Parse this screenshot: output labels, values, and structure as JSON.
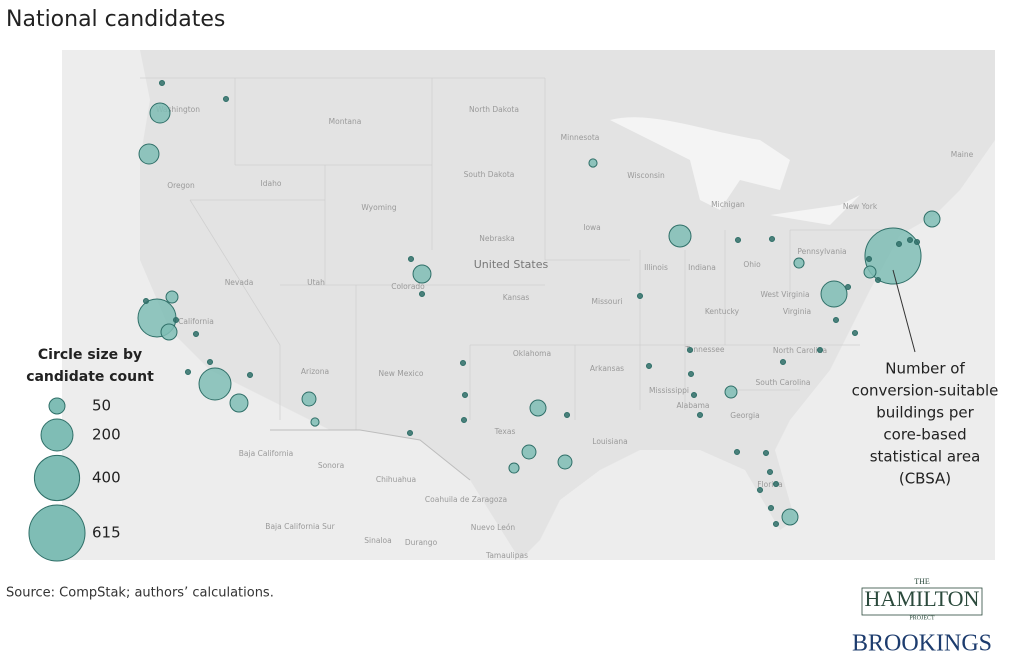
{
  "title": "National candidates",
  "source": "Source: CompStak; authors’ calculations.",
  "legend": {
    "title_lines": [
      "Circle size by",
      "candidate count"
    ],
    "sizes": [
      50,
      200,
      400,
      615
    ]
  },
  "annotation": {
    "lines": [
      "Number of",
      "conversion-suitable",
      "buildings per",
      "core-based",
      "statistical area",
      "(CBSA)"
    ]
  },
  "logos": {
    "the": "THE",
    "hamilton": "HAMILTON",
    "project": "PROJECT",
    "brookings": "BROOKINGS"
  },
  "map": {
    "labels": [
      "Washington",
      "Montana",
      "North Dakota",
      "Minnesota",
      "Oregon",
      "Idaho",
      "South Dakota",
      "Wisconsin",
      "Wyoming",
      "Michigan",
      "New York",
      "Maine",
      "Nebraska",
      "Iowa",
      "Pennsylvania",
      "Nevada",
      "Utah",
      "Colorado",
      "United States",
      "Kansas",
      "Illinois",
      "Indiana",
      "Ohio",
      "California",
      "Missouri",
      "West Virginia",
      "Virginia",
      "Kentucky",
      "Arizona",
      "New Mexico",
      "Oklahoma",
      "Tennessee",
      "North Carolina",
      "Arkansas",
      "South Carolina",
      "Mississippi",
      "Alabama",
      "Georgia",
      "Texas",
      "Louisiana",
      "Baja California",
      "Sonora",
      "Chihuahua",
      "Coahuila de Zaragoza",
      "Nuevo León",
      "Baja California Sur",
      "Sinaloa",
      "Durango",
      "Tamaulipas",
      "Florida"
    ],
    "bubble_counts": [
      78,
      78,
      283,
      28,
      50,
      200,
      63,
      38,
      13,
      63,
      95,
      13,
      50,
      38,
      38,
      20,
      50,
      615,
      28,
      132,
      28,
      50,
      20,
      5,
      5,
      5,
      5,
      5,
      5,
      5,
      5,
      5,
      5,
      5,
      5,
      5,
      5,
      5,
      5,
      5,
      5,
      5,
      5,
      5,
      5,
      5,
      5,
      5,
      5,
      5,
      5,
      5,
      5,
      5,
      5,
      5,
      5,
      5,
      5,
      5,
      5,
      5,
      5
    ]
  }
}
